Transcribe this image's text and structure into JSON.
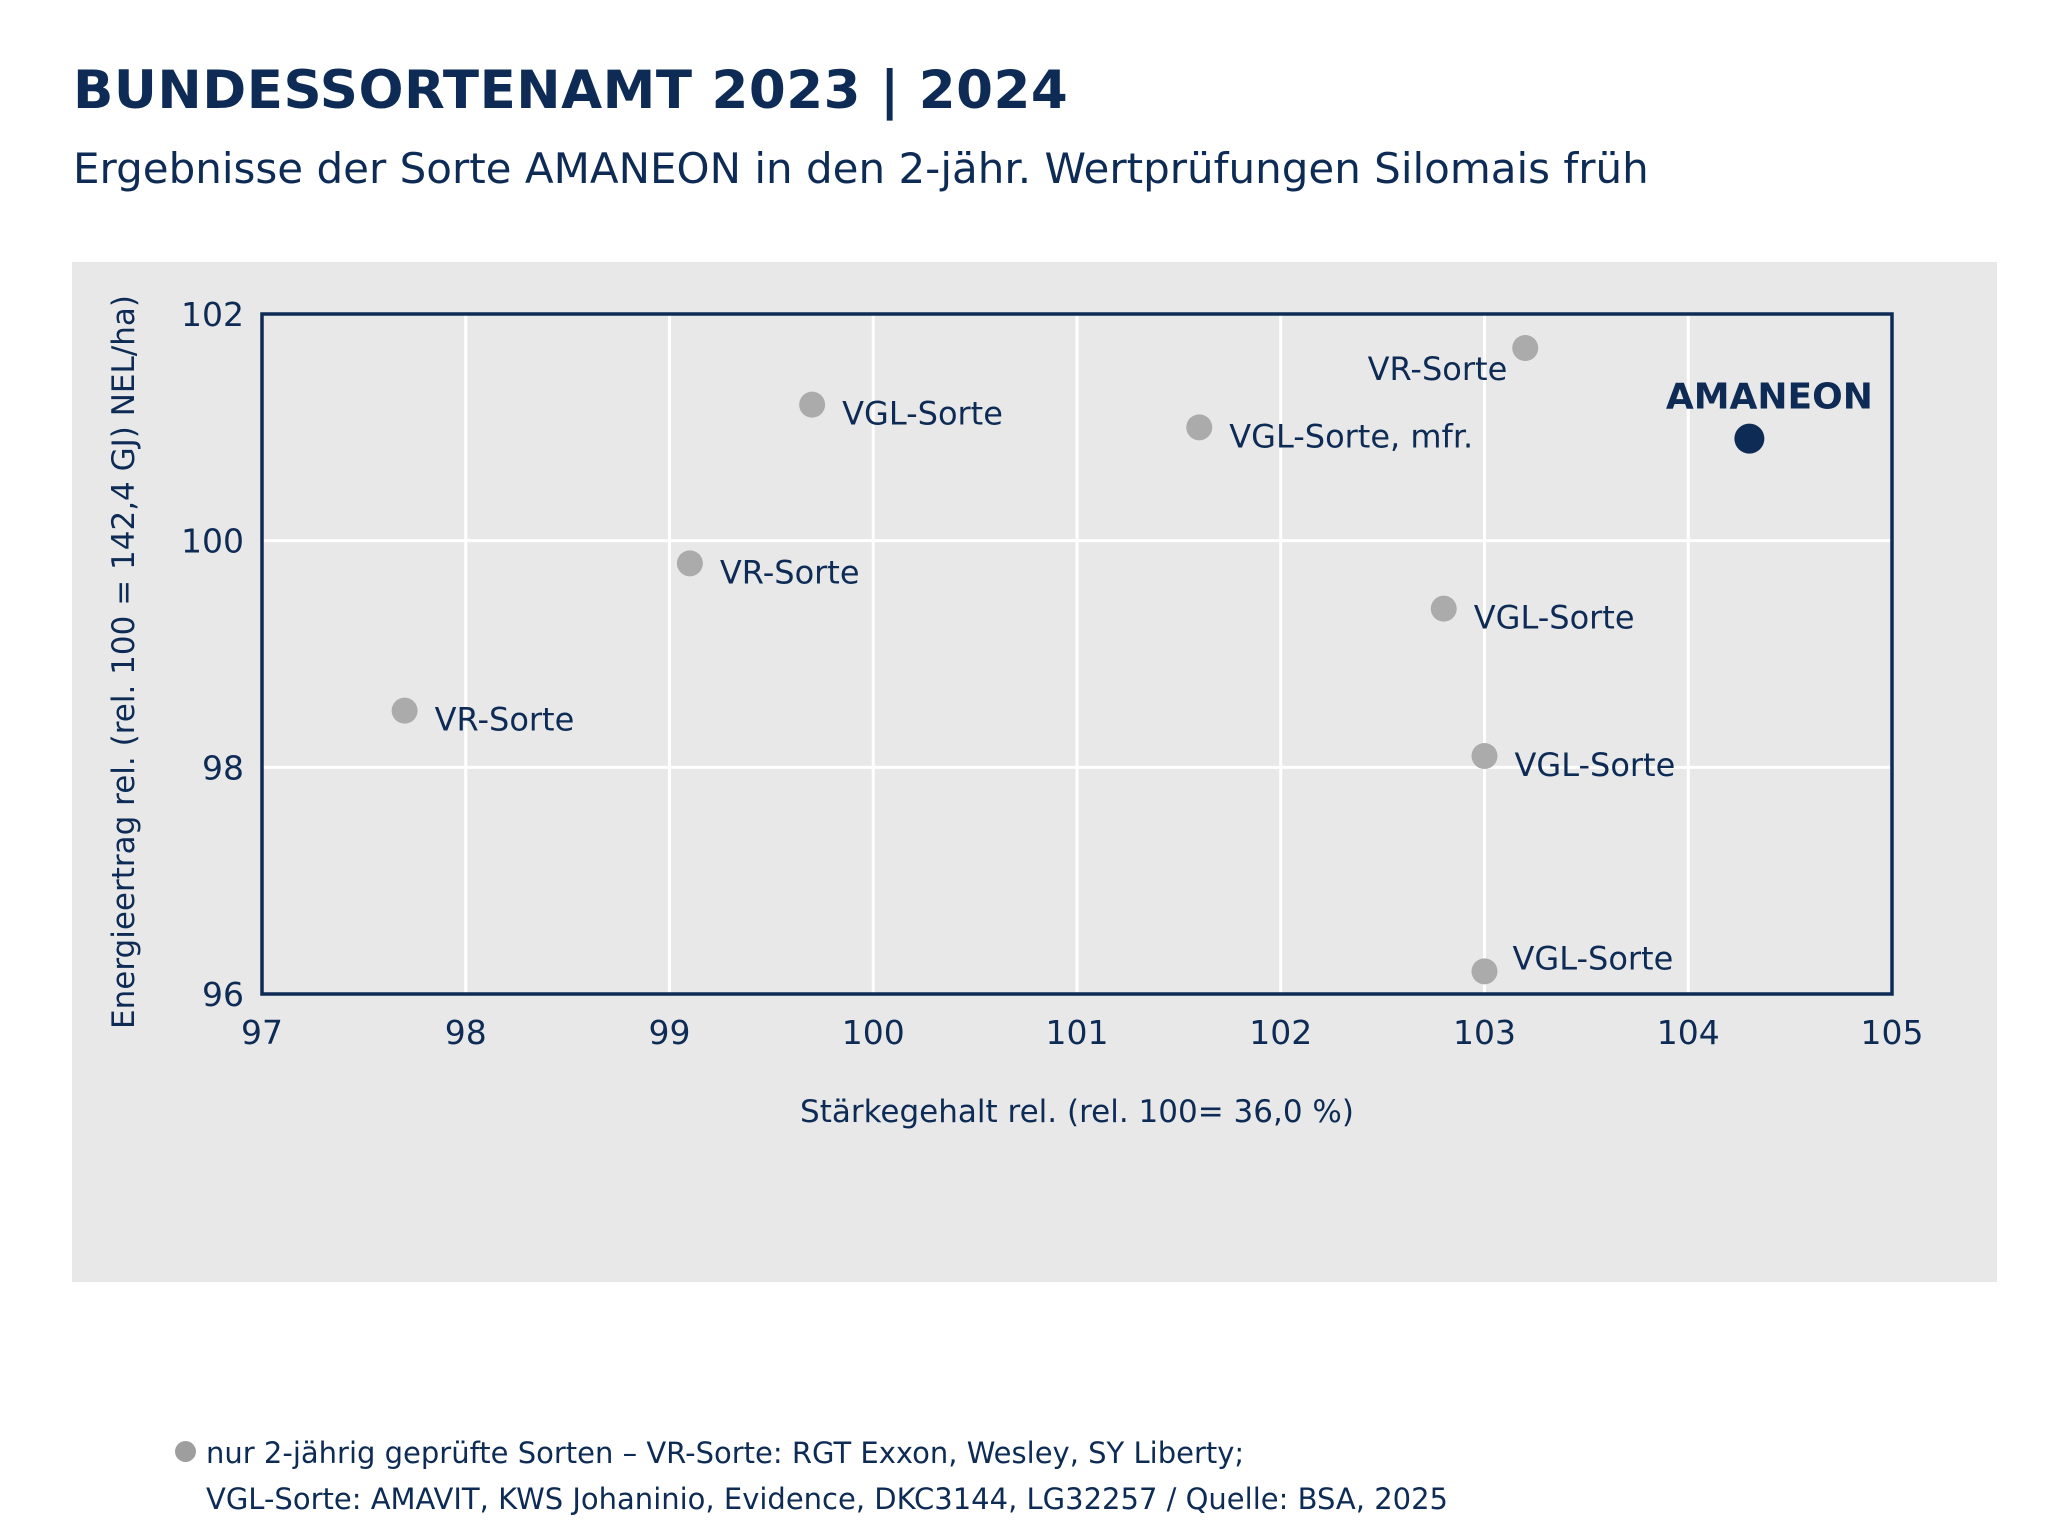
{
  "header": {
    "title": "BUNDESSORTENAMT 2023 | 2024",
    "subtitle": "Ergebnisse der Sorte AMANEON in den 2-jähr. Wertprüfungen Silomais früh"
  },
  "legend": {
    "line1": "nur 2-jährig geprüfte Sorten – VR-Sorte: RGT Exxon, Wesley, SY Liberty;",
    "line2": "VGL-Sorte: AMAVIT, KWS Johaninio, Evidence, DKC3144, LG32257 / Quelle: BSA, 2025"
  },
  "colors": {
    "navy": "#0d2b55",
    "grey_point": "#ababab",
    "panel_bg": "#e8e8e8",
    "grid": "#ffffff"
  },
  "chart_data": {
    "type": "scatter",
    "xlabel": "Stärkegehalt rel. (rel. 100= 36,0 %)",
    "ylabel": "Energieertrag rel. (rel. 100 = 142,4 GJ) NEL/ha)",
    "xlim": [
      97,
      105
    ],
    "ylim": [
      96,
      102
    ],
    "xticks": [
      97,
      98,
      99,
      100,
      101,
      102,
      103,
      104,
      105
    ],
    "yticks": [
      96,
      98,
      100,
      102
    ],
    "grid": true,
    "points": [
      {
        "label": "VR-Sorte",
        "x": 97.7,
        "y": 98.5,
        "highlight": false,
        "label_side": "right"
      },
      {
        "label": "VR-Sorte",
        "x": 99.1,
        "y": 99.8,
        "highlight": false,
        "label_side": "right"
      },
      {
        "label": "VGL-Sorte",
        "x": 99.7,
        "y": 101.2,
        "highlight": false,
        "label_side": "right"
      },
      {
        "label": "VGL-Sorte, mfr.",
        "x": 101.6,
        "y": 101.0,
        "highlight": false,
        "label_side": "right"
      },
      {
        "label": "VR-Sorte",
        "x": 103.2,
        "y": 101.7,
        "highlight": false,
        "label_side": "left-below"
      },
      {
        "label": "VGL-Sorte",
        "x": 102.8,
        "y": 99.4,
        "highlight": false,
        "label_side": "right"
      },
      {
        "label": "VGL-Sorte",
        "x": 103.0,
        "y": 98.1,
        "highlight": false,
        "label_side": "right"
      },
      {
        "label": "VGL-Sorte",
        "x": 103.0,
        "y": 96.2,
        "highlight": false,
        "label_side": "right-above"
      },
      {
        "label": "AMANEON",
        "x": 104.3,
        "y": 100.9,
        "highlight": true,
        "label_side": "above"
      }
    ]
  }
}
